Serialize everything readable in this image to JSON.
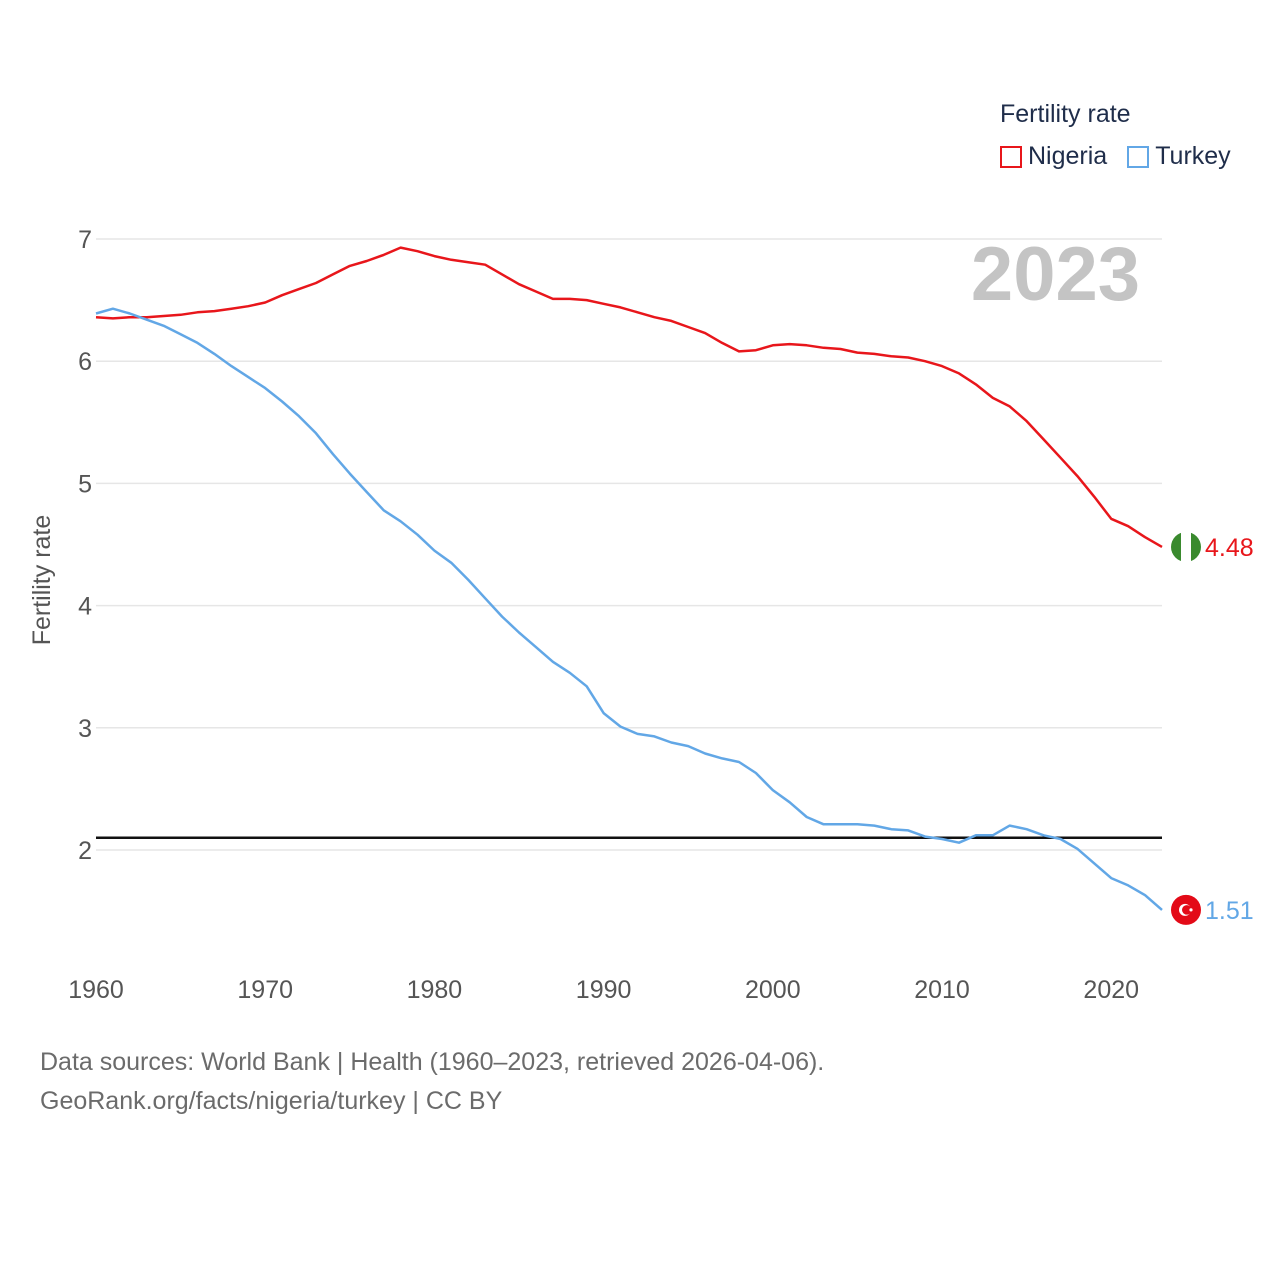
{
  "legend": {
    "title": "Fertility rate",
    "items": [
      {
        "label": "Nigeria",
        "color": "#e8161b"
      },
      {
        "label": "Turkey",
        "color": "#62a7e6"
      }
    ]
  },
  "footer": {
    "line1": "Data sources: World Bank | Health (1960–2023, retrieved 2026-04-06).",
    "line2": "GeoRank.org/facts/nigeria/turkey | CC BY"
  },
  "chart_data": {
    "type": "line",
    "title": "",
    "ylabel": "Fertility rate",
    "xlabel": "",
    "xlim": [
      1960,
      2023
    ],
    "ylim": [
      1.5,
      7
    ],
    "year_watermark": "2023",
    "x_ticks": [
      1960,
      1970,
      1980,
      1990,
      2000,
      2010,
      2020
    ],
    "y_ticks": [
      2,
      3,
      4,
      5,
      6,
      7
    ],
    "reference_line": {
      "y": 2.1
    },
    "x": [
      1960,
      1961,
      1962,
      1963,
      1964,
      1965,
      1966,
      1967,
      1968,
      1969,
      1970,
      1971,
      1972,
      1973,
      1974,
      1975,
      1976,
      1977,
      1978,
      1979,
      1980,
      1981,
      1982,
      1983,
      1984,
      1985,
      1986,
      1987,
      1988,
      1989,
      1990,
      1991,
      1992,
      1993,
      1994,
      1995,
      1996,
      1997,
      1998,
      1999,
      2000,
      2001,
      2002,
      2003,
      2004,
      2005,
      2006,
      2007,
      2008,
      2009,
      2010,
      2011,
      2012,
      2013,
      2014,
      2015,
      2016,
      2017,
      2018,
      2019,
      2020,
      2021,
      2022,
      2023
    ],
    "series": [
      {
        "name": "Nigeria",
        "color": "#e8161b",
        "end_label": "4.48",
        "flag": "nigeria-flag",
        "values": [
          6.36,
          6.35,
          6.36,
          6.36,
          6.37,
          6.38,
          6.4,
          6.41,
          6.43,
          6.45,
          6.48,
          6.54,
          6.59,
          6.64,
          6.71,
          6.78,
          6.82,
          6.87,
          6.93,
          6.9,
          6.86,
          6.83,
          6.81,
          6.79,
          6.71,
          6.63,
          6.57,
          6.51,
          6.51,
          6.5,
          6.47,
          6.44,
          6.4,
          6.36,
          6.33,
          6.28,
          6.23,
          6.15,
          6.08,
          6.09,
          6.13,
          6.14,
          6.13,
          6.11,
          6.1,
          6.07,
          6.06,
          6.04,
          6.03,
          6.0,
          5.96,
          5.9,
          5.81,
          5.7,
          5.63,
          5.51,
          5.36,
          5.21,
          5.06,
          4.89,
          4.71,
          4.65,
          4.56,
          4.48
        ]
      },
      {
        "name": "Turkey",
        "color": "#62a7e6",
        "end_label": "1.51",
        "flag": "turkey-flag",
        "values": [
          6.39,
          6.43,
          6.39,
          6.34,
          6.29,
          6.22,
          6.15,
          6.06,
          5.96,
          5.87,
          5.78,
          5.67,
          5.55,
          5.41,
          5.24,
          5.08,
          4.93,
          4.78,
          4.69,
          4.58,
          4.45,
          4.35,
          4.21,
          4.06,
          3.91,
          3.78,
          3.66,
          3.54,
          3.45,
          3.34,
          3.12,
          3.01,
          2.95,
          2.93,
          2.88,
          2.85,
          2.79,
          2.75,
          2.72,
          2.63,
          2.49,
          2.39,
          2.27,
          2.21,
          2.21,
          2.21,
          2.2,
          2.17,
          2.16,
          2.11,
          2.09,
          2.06,
          2.12,
          2.12,
          2.2,
          2.17,
          2.12,
          2.09,
          2.01,
          1.89,
          1.77,
          1.71,
          1.63,
          1.51
        ]
      }
    ]
  }
}
